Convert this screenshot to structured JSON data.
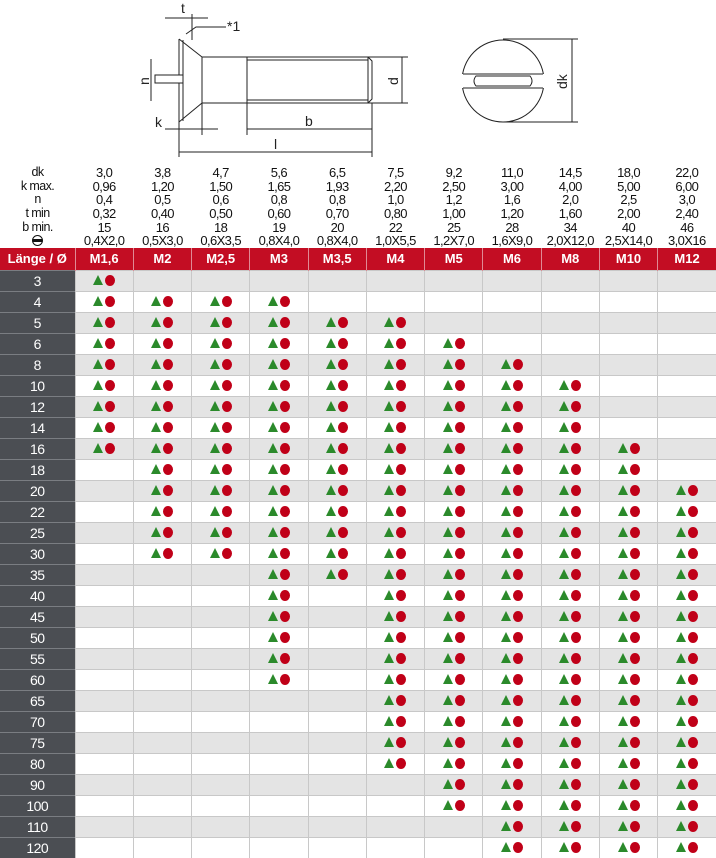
{
  "drawing": {
    "labels": {
      "t": "t",
      "note": "*1",
      "n": "n",
      "k": "k",
      "b": "b",
      "l": "l",
      "d": "d",
      "dk": "dk"
    }
  },
  "spec_rows": [
    {
      "label": "dk",
      "values": [
        "3,0",
        "3,8",
        "4,7",
        "5,6",
        "6,5",
        "7,5",
        "9,2",
        "11,0",
        "14,5",
        "18,0",
        "22,0"
      ]
    },
    {
      "label": "k max.",
      "values": [
        "0,96",
        "1,20",
        "1,50",
        "1,65",
        "1,93",
        "2,20",
        "2,50",
        "3,00",
        "4,00",
        "5,00",
        "6,00"
      ]
    },
    {
      "label": "n",
      "values": [
        "0,4",
        "0,5",
        "0,6",
        "0,8",
        "0,8",
        "1,0",
        "1,2",
        "1,6",
        "2,0",
        "2,5",
        "3,0"
      ]
    },
    {
      "label": "t min",
      "values": [
        "0,32",
        "0,40",
        "0,50",
        "0,60",
        "0,70",
        "0,80",
        "1,00",
        "1,20",
        "1,60",
        "2,00",
        "2,40"
      ]
    },
    {
      "label": "b min.",
      "values": [
        "15",
        "16",
        "18",
        "19",
        "20",
        "22",
        "25",
        "28",
        "34",
        "40",
        "46"
      ]
    },
    {
      "label": "",
      "icon": "slotted-head-icon",
      "values": [
        "0,4X2,0",
        "0,5X3,0",
        "0,6X3,5",
        "0,8X4,0",
        "0,8X4,0",
        "1,0X5,5",
        "1,2X7,0",
        "1,6X9,0",
        "2,0X12,0",
        "2,5X14,0",
        "3,0X16"
      ]
    }
  ],
  "header": {
    "label": "Länge / Ø",
    "sizes": [
      "M1,6",
      "M2",
      "M2,5",
      "M3",
      "M3,5",
      "M4",
      "M5",
      "M6",
      "M8",
      "M10",
      "M12"
    ]
  },
  "colors": {
    "header_red": "#c30d23",
    "length_col": "#4b4e53",
    "triangle_green": "#2b8a2b",
    "circle_red": "#c00018",
    "alt_row": "#e4e4e4"
  },
  "marker_icons": [
    "triangle-icon",
    "circle-icon"
  ],
  "rows": [
    {
      "length": "3",
      "available": [
        "M1,6"
      ]
    },
    {
      "length": "4",
      "available": [
        "M1,6",
        "M2",
        "M2,5",
        "M3"
      ]
    },
    {
      "length": "5",
      "available": [
        "M1,6",
        "M2",
        "M2,5",
        "M3",
        "M3,5",
        "M4"
      ]
    },
    {
      "length": "6",
      "available": [
        "M1,6",
        "M2",
        "M2,5",
        "M3",
        "M3,5",
        "M4",
        "M5"
      ]
    },
    {
      "length": "8",
      "available": [
        "M1,6",
        "M2",
        "M2,5",
        "M3",
        "M3,5",
        "M4",
        "M5",
        "M6"
      ]
    },
    {
      "length": "10",
      "available": [
        "M1,6",
        "M2",
        "M2,5",
        "M3",
        "M3,5",
        "M4",
        "M5",
        "M6",
        "M8"
      ]
    },
    {
      "length": "12",
      "available": [
        "M1,6",
        "M2",
        "M2,5",
        "M3",
        "M3,5",
        "M4",
        "M5",
        "M6",
        "M8"
      ]
    },
    {
      "length": "14",
      "available": [
        "M1,6",
        "M2",
        "M2,5",
        "M3",
        "M3,5",
        "M4",
        "M5",
        "M6",
        "M8"
      ]
    },
    {
      "length": "16",
      "available": [
        "M1,6",
        "M2",
        "M2,5",
        "M3",
        "M3,5",
        "M4",
        "M5",
        "M6",
        "M8",
        "M10"
      ]
    },
    {
      "length": "18",
      "available": [
        "M2",
        "M2,5",
        "M3",
        "M3,5",
        "M4",
        "M5",
        "M6",
        "M8",
        "M10"
      ]
    },
    {
      "length": "20",
      "available": [
        "M2",
        "M2,5",
        "M3",
        "M3,5",
        "M4",
        "M5",
        "M6",
        "M8",
        "M10",
        "M12"
      ]
    },
    {
      "length": "22",
      "available": [
        "M2",
        "M2,5",
        "M3",
        "M3,5",
        "M4",
        "M5",
        "M6",
        "M8",
        "M10",
        "M12"
      ]
    },
    {
      "length": "25",
      "available": [
        "M2",
        "M2,5",
        "M3",
        "M3,5",
        "M4",
        "M5",
        "M6",
        "M8",
        "M10",
        "M12"
      ]
    },
    {
      "length": "30",
      "available": [
        "M2",
        "M2,5",
        "M3",
        "M3,5",
        "M4",
        "M5",
        "M6",
        "M8",
        "M10",
        "M12"
      ]
    },
    {
      "length": "35",
      "available": [
        "M3",
        "M3,5",
        "M4",
        "M5",
        "M6",
        "M8",
        "M10",
        "M12"
      ]
    },
    {
      "length": "40",
      "available": [
        "M3",
        "M4",
        "M5",
        "M6",
        "M8",
        "M10",
        "M12"
      ]
    },
    {
      "length": "45",
      "available": [
        "M3",
        "M4",
        "M5",
        "M6",
        "M8",
        "M10",
        "M12"
      ]
    },
    {
      "length": "50",
      "available": [
        "M3",
        "M4",
        "M5",
        "M6",
        "M8",
        "M10",
        "M12"
      ]
    },
    {
      "length": "55",
      "available": [
        "M3",
        "M4",
        "M5",
        "M6",
        "M8",
        "M10",
        "M12"
      ]
    },
    {
      "length": "60",
      "available": [
        "M3",
        "M4",
        "M5",
        "M6",
        "M8",
        "M10",
        "M12"
      ]
    },
    {
      "length": "65",
      "available": [
        "M4",
        "M5",
        "M6",
        "M8",
        "M10",
        "M12"
      ]
    },
    {
      "length": "70",
      "available": [
        "M4",
        "M5",
        "M6",
        "M8",
        "M10",
        "M12"
      ]
    },
    {
      "length": "75",
      "available": [
        "M4",
        "M5",
        "M6",
        "M8",
        "M10",
        "M12"
      ]
    },
    {
      "length": "80",
      "available": [
        "M4",
        "M5",
        "M6",
        "M8",
        "M10",
        "M12"
      ]
    },
    {
      "length": "90",
      "available": [
        "M5",
        "M6",
        "M8",
        "M10",
        "M12"
      ]
    },
    {
      "length": "100",
      "available": [
        "M5",
        "M6",
        "M8",
        "M10",
        "M12"
      ]
    },
    {
      "length": "110",
      "available": [
        "M6",
        "M8",
        "M10",
        "M12"
      ]
    },
    {
      "length": "120",
      "available": [
        "M6",
        "M8",
        "M10",
        "M12"
      ]
    }
  ]
}
